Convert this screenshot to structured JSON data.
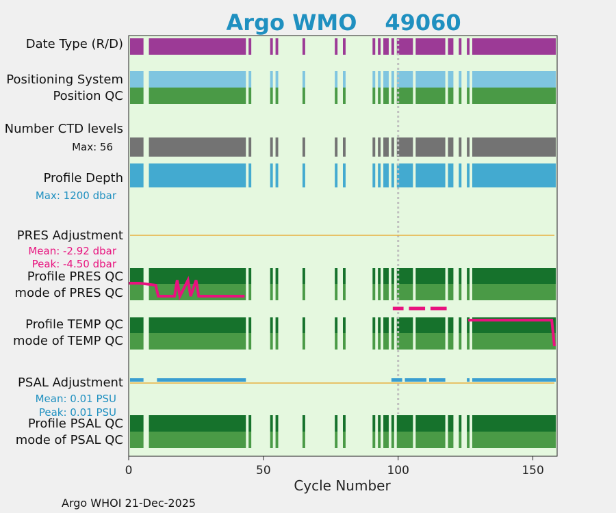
{
  "colors": {
    "background": "#f0f0f0",
    "plot_bg": "#e5f8df",
    "title": "#1f90c0",
    "date_type": "#9c3a96",
    "positioning": "#7fc5e0",
    "qc_green": "#4a9a46",
    "qc_dark_green": "#16722c",
    "ctd_levels": "#737373",
    "profile_depth": "#43aad0",
    "pres_adjust": "#e8127e",
    "psal_adjust": "#3a9ed0",
    "adjust_zero_line": "#e8b040",
    "cycle_marker": "#c0c0c0",
    "temp_adjust": "#e8127e"
  },
  "chart_data": {
    "type": "timeline",
    "title_prefix": "Argo WMO",
    "wmo": "49060",
    "xlabel": "Cycle Number",
    "xlim": [
      0,
      159
    ],
    "xticks": [
      0,
      50,
      100,
      150
    ],
    "cycle_marker": 100,
    "present_cycle_ranges": [
      [
        1,
        5
      ],
      [
        8,
        43
      ],
      [
        45,
        45
      ],
      [
        53,
        53
      ],
      [
        55,
        55
      ],
      [
        65,
        65
      ],
      [
        77,
        77
      ],
      [
        80,
        80
      ],
      [
        91,
        91
      ],
      [
        93,
        93
      ],
      [
        95,
        96
      ],
      [
        98,
        98
      ],
      [
        100,
        105
      ],
      [
        107,
        117
      ],
      [
        119,
        120
      ],
      [
        123,
        123
      ],
      [
        126,
        126
      ],
      [
        128,
        158
      ]
    ],
    "rows": [
      {
        "key": "date_type",
        "label": "Date Type (R/D)"
      },
      {
        "key": "positioning",
        "label": "Positioning System"
      },
      {
        "key": "position_qc",
        "label": "Position QC"
      },
      {
        "key": "ctd_levels",
        "label": "Number CTD levels",
        "max_label": "Max: 56"
      },
      {
        "key": "profile_depth",
        "label": "Profile Depth",
        "max_label": "Max: 1200 dbar"
      },
      {
        "key": "pres_adjustment",
        "label": "PRES Adjustment",
        "mean_label": "Mean: -2.92 dbar",
        "peak_label": "Peak: -4.50 dbar"
      },
      {
        "key": "profile_pres_qc",
        "label": "Profile PRES QC"
      },
      {
        "key": "mode_pres_qc",
        "label": "mode of PRES QC"
      },
      {
        "key": "profile_temp_qc",
        "label": "Profile TEMP QC"
      },
      {
        "key": "mode_temp_qc",
        "label": "mode of TEMP QC"
      },
      {
        "key": "psal_adjustment",
        "label": "PSAL Adjustment",
        "mean_label": "Mean: 0.01 PSU",
        "peak_label": "Peak: 0.01 PSU"
      },
      {
        "key": "profile_psal_qc",
        "label": "Profile PSAL QC"
      },
      {
        "key": "mode_psal_qc",
        "label": "mode of PSAL QC"
      }
    ],
    "pres_adjustment_series": [
      [
        0,
        -3.2
      ],
      [
        1,
        -3.2
      ],
      [
        4,
        -3.2
      ],
      [
        10,
        -3.4
      ],
      [
        11,
        -4.5
      ],
      [
        17,
        -4.5
      ],
      [
        18,
        -2.9
      ],
      [
        19,
        -4.5
      ],
      [
        22,
        -2.9
      ],
      [
        23,
        -4.5
      ],
      [
        25,
        -2.9
      ],
      [
        26,
        -4.5
      ],
      [
        43,
        -4.5
      ]
    ],
    "temp_adjustment_segments": [
      [
        98,
        102
      ],
      [
        104,
        110
      ],
      [
        112,
        118
      ]
    ],
    "temp_adjustment_line": [
      [
        126,
        0
      ],
      [
        157,
        0
      ],
      [
        158,
        -1
      ]
    ],
    "psal_adjustment_segments": [
      [
        1,
        5
      ],
      [
        11,
        43
      ],
      [
        98,
        101
      ],
      [
        103,
        110
      ],
      [
        112,
        117
      ],
      [
        126,
        126
      ],
      [
        128,
        158
      ]
    ]
  },
  "footer": "Argo WHOI 21-Dec-2025"
}
